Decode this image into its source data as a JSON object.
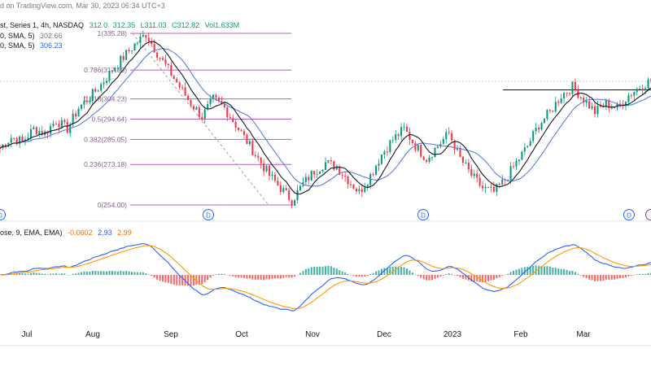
{
  "header": {
    "published": "d on TradingView.com, Mar 30, 2023 06:34 UTC+3"
  },
  "legend": {
    "symbol": "st, Series 1, 4h, NASDAQ",
    "ohlc": [
      "312.0",
      "312.35",
      "L311.03",
      "C312.82"
    ],
    "volume": "Vol1.633M",
    "sma1_label": "0, SMA, 5)",
    "sma1_value": "302.66",
    "sma2_label": "0, SMA, 5)",
    "sma2_value": "306.23",
    "macd_label": "ose, 9, EMA, EMA)",
    "macd_values": [
      "-0.0602",
      "2.93",
      "2.99"
    ]
  },
  "colors": {
    "up": "#089981",
    "down": "#f23645",
    "sma_fast": "#131722",
    "sma_slow": "#5b7fd9",
    "fib": "#9c27b0",
    "macd_line": "#2962ff",
    "signal_line": "#ff9800",
    "hist_up": "#26a69a",
    "hist_down": "#ef5350",
    "level_line": "#b2dfdb",
    "resistance": "#131722"
  },
  "chart_data": {
    "type": "candlestick",
    "timeframe": "4h",
    "x_tick_labels": [
      "Jul",
      "Aug",
      "Sep",
      "Oct",
      "Nov",
      "Dec",
      "2023",
      "Feb",
      "Mar"
    ],
    "dividend_markers": [
      "D",
      "D",
      "D",
      "D"
    ],
    "fib_levels": [
      {
        "ratio": "1",
        "price": 335.28,
        "label": "1(335.28)"
      },
      {
        "ratio": "0.786",
        "price": 317.89,
        "label": "0.786(317.89)"
      },
      {
        "ratio": "0.618",
        "price": 304.23,
        "label": "0.618(304.23)"
      },
      {
        "ratio": "0.5",
        "price": 294.64,
        "label": "0.5(294.64)"
      },
      {
        "ratio": "0.382",
        "price": 285.05,
        "label": "0.382(285.05)"
      },
      {
        "ratio": "0.236",
        "price": 273.18,
        "label": "0.236(273.18)"
      },
      {
        "ratio": "0",
        "price": 254.0,
        "label": "0(254.00)"
      }
    ],
    "price_path": [
      [
        0,
        281
      ],
      [
        4,
        286
      ],
      [
        8,
        284
      ],
      [
        12,
        290
      ],
      [
        16,
        288
      ],
      [
        20,
        294
      ],
      [
        24,
        290
      ],
      [
        28,
        300
      ],
      [
        32,
        305
      ],
      [
        36,
        311
      ],
      [
        40,
        318
      ],
      [
        44,
        324
      ],
      [
        48,
        330
      ],
      [
        52,
        335
      ],
      [
        56,
        326
      ],
      [
        60,
        318
      ],
      [
        64,
        310
      ],
      [
        68,
        302
      ],
      [
        72,
        296
      ],
      [
        76,
        304
      ],
      [
        80,
        300
      ],
      [
        84,
        292
      ],
      [
        88,
        284
      ],
      [
        92,
        276
      ],
      [
        96,
        268
      ],
      [
        100,
        262
      ],
      [
        104,
        256
      ],
      [
        108,
        264
      ],
      [
        112,
        270
      ],
      [
        116,
        274
      ],
      [
        120,
        272
      ],
      [
        124,
        266
      ],
      [
        128,
        260
      ],
      [
        132,
        268
      ],
      [
        136,
        278
      ],
      [
        140,
        285
      ],
      [
        144,
        290
      ],
      [
        148,
        282
      ],
      [
        152,
        276
      ],
      [
        156,
        282
      ],
      [
        160,
        288
      ],
      [
        164,
        276
      ],
      [
        168,
        268
      ],
      [
        172,
        262
      ],
      [
        176,
        260
      ],
      [
        180,
        266
      ],
      [
        184,
        274
      ],
      [
        188,
        282
      ],
      [
        192,
        292
      ],
      [
        196,
        298
      ],
      [
        200,
        306
      ],
      [
        204,
        310
      ],
      [
        208,
        304
      ],
      [
        212,
        298
      ],
      [
        216,
        302
      ],
      [
        220,
        300
      ],
      [
        224,
        306
      ],
      [
        228,
        310
      ],
      [
        232,
        313
      ]
    ],
    "resistance_level": 308.5
  }
}
